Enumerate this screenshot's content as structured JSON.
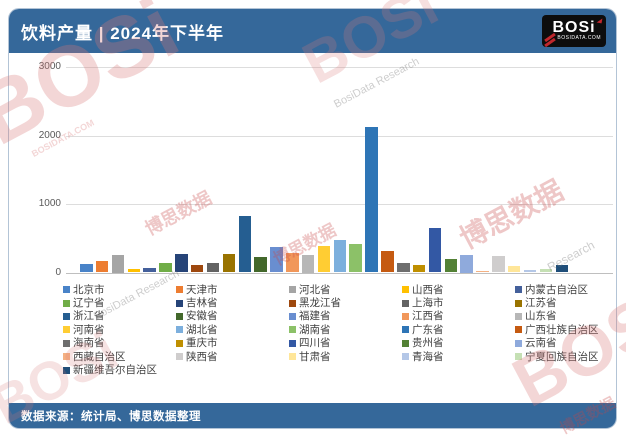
{
  "header": {
    "title": "饮料产量 | 2024年下半年",
    "logo": {
      "brand": "BOSi",
      "domain": "BOSIDATA.COM"
    }
  },
  "footer": {
    "source": "数据来源：统计局、博思数据整理"
  },
  "watermark": {
    "brand": "BOSi",
    "cn": "博思数据",
    "research": "BosiData Research",
    "domain": "BOSIDATA.COM"
  },
  "chart_data": {
    "type": "bar",
    "title": "饮料产量 | 2024年下半年",
    "xlabel": "",
    "ylabel": "",
    "ylim": [
      0,
      3000
    ],
    "yticks": [
      0,
      1000,
      2000,
      3000
    ],
    "grid": true,
    "legend_position": "bottom",
    "categories": [
      "北京市",
      "天津市",
      "河北省",
      "山西省",
      "内蒙古自治区",
      "辽宁省",
      "吉林省",
      "黑龙江省",
      "上海市",
      "江苏省",
      "浙江省",
      "安徽省",
      "福建省",
      "江西省",
      "山东省",
      "河南省",
      "湖北省",
      "湖南省",
      "广东省",
      "广西壮族自治区",
      "海南省",
      "重庆市",
      "四川省",
      "贵州省",
      "云南省",
      "西藏自治区",
      "陕西省",
      "甘肃省",
      "青海省",
      "宁夏回族自治区",
      "新疆维吾尔自治区"
    ],
    "values": [
      130,
      165,
      250,
      55,
      70,
      145,
      265,
      105,
      135,
      265,
      825,
      230,
      370,
      280,
      250,
      390,
      470,
      420,
      2120,
      320,
      135,
      110,
      655,
      190,
      250,
      20,
      245,
      100,
      35,
      55,
      110
    ],
    "colors": [
      "#4983C8",
      "#ED7D31",
      "#A5A5A5",
      "#FFC000",
      "#44609B",
      "#70AD47",
      "#264478",
      "#9E480E",
      "#636363",
      "#997300",
      "#255E91",
      "#43682B",
      "#698ED0",
      "#F1975A",
      "#B7B7B7",
      "#FFCD33",
      "#7CAFDD",
      "#8CC168",
      "#2E75B6",
      "#C55A11",
      "#6E6E6E",
      "#BF8F00",
      "#3358A4",
      "#538135",
      "#8FAADC",
      "#F4B183",
      "#CFCDCD",
      "#FFE699",
      "#B4C7E7",
      "#C5E0B4",
      "#1F4E79"
    ]
  }
}
